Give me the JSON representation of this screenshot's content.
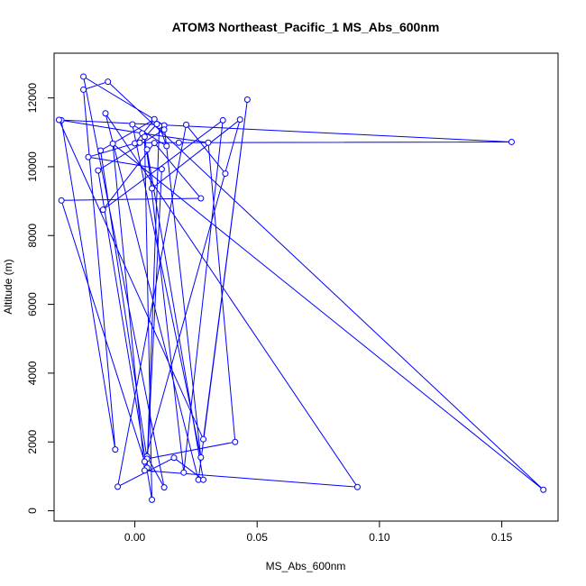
{
  "chart_data": {
    "type": "line",
    "title": "ATOM3 Northeast_Pacific_1 MS_Abs_600nm",
    "xlabel": "MS_Abs_600nm",
    "ylabel": "Altitude (m)",
    "xlim": [
      -0.033,
      0.173
    ],
    "ylim": [
      -300,
      13300
    ],
    "x_ticks": [
      0.0,
      0.05,
      0.1,
      0.15
    ],
    "x_tick_labels": [
      "0.00",
      "0.05",
      "0.10",
      "0.15"
    ],
    "y_ticks": [
      0,
      2000,
      4000,
      6000,
      8000,
      10000,
      12000
    ],
    "y_tick_labels": [
      "0",
      "2000",
      "4000",
      "6000",
      "8000",
      "10000",
      "12000"
    ],
    "grid": false,
    "markers": "open-circle",
    "series_color": "#0000ff",
    "series": [
      {
        "x": [
          0.005,
          0.012,
          -0.021,
          0.012,
          0.027,
          -0.001,
          0.013,
          0.01,
          0.005,
          0.011,
          -0.019,
          0.0,
          0.008,
          -0.014,
          0.005,
          0.041,
          0.03,
          0.003,
          -0.03,
          -0.008,
          -0.021,
          -0.011,
          0.167,
          -0.009,
          0.004,
          0.091,
          -0.012,
          0.026,
          0.046,
          0.028,
          -0.031,
          0.154,
          0.018,
          0.002,
          0.009,
          0.012,
          -0.015,
          0.007,
          0.004,
          0.007,
          0.043,
          0.004,
          -0.03,
          0.027,
          0.008,
          -0.013,
          0.036,
          0.02,
          0.005,
          0.028,
          0.016,
          -0.007,
          0.021,
          0.037
        ],
        "y": [
          1580,
          680,
          12620,
          11200,
          1550,
          11230,
          10600,
          11190,
          1250,
          9930,
          10280,
          10680,
          11380,
          10470,
          1510,
          2000,
          10700,
          10970,
          11350,
          1780,
          12240,
          12470,
          610,
          10670,
          1170,
          690,
          11550,
          900,
          11950,
          2080,
          11360,
          10720,
          10700,
          10700,
          11240,
          11080,
          9890,
          320,
          10870,
          9370,
          11370,
          1430,
          9020,
          9080,
          10690,
          8750,
          11350,
          1110,
          10500,
          900,
          1540,
          700,
          11220,
          9800
        ]
      }
    ]
  }
}
